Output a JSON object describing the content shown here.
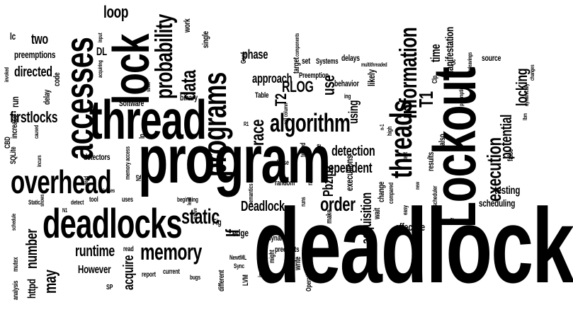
{
  "words": [
    {
      "text": "deadlock",
      "weight": 10
    },
    {
      "text": "program",
      "weight": 9
    },
    {
      "text": "Lockout",
      "weight": 8
    },
    {
      "text": "thread",
      "weight": 8
    },
    {
      "text": "lock",
      "weight": 8
    },
    {
      "text": "deadlocks",
      "weight": 7
    },
    {
      "text": "accesses",
      "weight": 7
    },
    {
      "text": "programs",
      "weight": 6
    },
    {
      "text": "overhead",
      "weight": 6
    },
    {
      "text": "threads",
      "weight": 6
    },
    {
      "text": "information",
      "weight": 5
    },
    {
      "text": "algorithm",
      "weight": 5
    },
    {
      "text": "probability",
      "weight": 5
    },
    {
      "text": "memory",
      "weight": 4
    },
    {
      "text": "execution",
      "weight": 4
    },
    {
      "text": "static",
      "weight": 4
    },
    {
      "text": "data",
      "weight": 4
    },
    {
      "text": "order",
      "weight": 4
    },
    {
      "text": "race",
      "weight": 4
    },
    {
      "text": "T1",
      "weight": 4
    },
    {
      "text": "T2",
      "weight": 3
    },
    {
      "text": "RLOG",
      "weight": 3
    },
    {
      "text": "potential",
      "weight": 3
    },
    {
      "text": "locking",
      "weight": 3
    },
    {
      "text": "number",
      "weight": 3
    },
    {
      "text": "firstlocks",
      "weight": 3
    },
    {
      "text": "directed",
      "weight": 3
    },
    {
      "text": "may",
      "weight": 3
    },
    {
      "text": "runtime",
      "weight": 3
    },
    {
      "text": "acquire",
      "weight": 3
    },
    {
      "text": "detection",
      "weight": 3
    },
    {
      "text": "dependent",
      "weight": 3
    },
    {
      "text": "Deadlock",
      "weight": 3
    },
    {
      "text": "acquisition",
      "weight": 3
    },
    {
      "text": "Pbzip2",
      "weight": 3
    },
    {
      "text": "If",
      "weight": 3
    },
    {
      "text": "loop",
      "weight": 3
    },
    {
      "text": "two",
      "weight": 2
    },
    {
      "text": "httpd",
      "weight": 2
    },
    {
      "text": "However",
      "weight": 2
    },
    {
      "text": "phase",
      "weight": 2
    },
    {
      "text": "approach",
      "weight": 2
    },
    {
      "text": "use",
      "weight": 2
    },
    {
      "text": "using",
      "weight": 2
    },
    {
      "text": "likely",
      "weight": 2
    },
    {
      "text": "time",
      "weight": 2
    },
    {
      "text": "manifestation",
      "weight": 2
    },
    {
      "text": "testing",
      "weight": 2
    },
    {
      "text": "scheduling",
      "weight": 2
    },
    {
      "text": "effective",
      "weight": 2
    },
    {
      "text": "executions",
      "weight": 2
    },
    {
      "text": "edge",
      "weight": 2
    },
    {
      "text": "DL",
      "weight": 2
    },
    {
      "text": "run",
      "weight": 2
    },
    {
      "text": "preemptions",
      "weight": 2
    },
    {
      "text": "lc",
      "weight": 1
    },
    {
      "text": "delay",
      "weight": 1
    },
    {
      "text": "code",
      "weight": 1
    },
    {
      "text": "increase",
      "weight": 1
    },
    {
      "text": "SQLite",
      "weight": 1
    },
    {
      "text": "CBD",
      "weight": 1
    },
    {
      "text": "detectors",
      "weight": 1
    },
    {
      "text": "Software",
      "weight": 1
    },
    {
      "text": "binary",
      "weight": 1
    },
    {
      "text": "work",
      "weight": 1
    },
    {
      "text": "single",
      "weight": 1
    },
    {
      "text": "set",
      "weight": 1
    },
    {
      "text": "Systems",
      "weight": 1
    },
    {
      "text": "delays",
      "weight": 1
    },
    {
      "text": "target",
      "weight": 1
    },
    {
      "text": "Preemption",
      "weight": 1
    },
    {
      "text": "behavior",
      "weight": 1
    },
    {
      "text": "source",
      "weight": 1
    },
    {
      "text": "random",
      "weight": 1
    },
    {
      "text": "results",
      "weight": 1
    },
    {
      "text": "also",
      "weight": 1
    },
    {
      "text": "change",
      "weight": 1
    },
    {
      "text": "wait",
      "weight": 1
    },
    {
      "text": "make",
      "weight": 1
    },
    {
      "text": "write",
      "weight": 1
    },
    {
      "text": "preempts",
      "weight": 1
    },
    {
      "text": "dynamic",
      "weight": 1
    },
    {
      "text": "instrumentation",
      "weight": 1
    },
    {
      "text": "different",
      "weight": 1
    },
    {
      "text": "LVM",
      "weight": 1
    },
    {
      "text": "Operating",
      "weight": 1
    },
    {
      "text": "might",
      "weight": 1
    },
    {
      "text": "Fig",
      "weight": 1
    },
    {
      "text": "Table",
      "weight": 1
    },
    {
      "text": "Conf",
      "weight": 1
    },
    {
      "text": "lp",
      "weight": 1
    },
    {
      "text": "N2",
      "weight": 1
    },
    {
      "text": "memory access",
      "weight": 1
    },
    {
      "text": "release",
      "weight": 1
    },
    {
      "text": "tested",
      "weight": 1
    },
    {
      "text": "races",
      "weight": 1
    },
    {
      "text": "one",
      "weight": 1
    },
    {
      "text": "false",
      "weight": 1
    },
    {
      "text": "Clp",
      "weight": 1
    },
    {
      "text": "report",
      "weight": 1
    },
    {
      "text": "current",
      "weight": 1
    },
    {
      "text": "bugs",
      "weight": 1
    },
    {
      "text": "SP",
      "weight": 1
    },
    {
      "text": "read",
      "weight": 1
    },
    {
      "text": "uses",
      "weight": 1
    },
    {
      "text": "tool",
      "weight": 1
    },
    {
      "text": "detect",
      "weight": 1
    },
    {
      "text": "Static",
      "weight": 1
    },
    {
      "text": "analysis",
      "weight": 1
    },
    {
      "text": "mutex",
      "weight": 1
    },
    {
      "text": "schedule",
      "weight": 1
    },
    {
      "text": "shows",
      "weight": 1
    },
    {
      "text": "N1",
      "weight": 1
    },
    {
      "text": "beginning",
      "weight": 1
    },
    {
      "text": "lead",
      "weight": 1
    },
    {
      "text": "Sync",
      "weight": 1
    },
    {
      "text": "NewtML",
      "weight": 1
    },
    {
      "text": "semantics",
      "weight": 1
    },
    {
      "text": "runs",
      "weight": 1
    },
    {
      "text": "compared",
      "weight": 1
    },
    {
      "text": "scheduler",
      "weight": 1
    },
    {
      "text": "new",
      "weight": 1
    },
    {
      "text": "de",
      "weight": 1
    },
    {
      "text": "easy",
      "weight": 1
    },
    {
      "text": "test",
      "weight": 1
    },
    {
      "text": "high",
      "weight": 1
    },
    {
      "text": "multithreaded",
      "weight": 1
    },
    {
      "text": "components",
      "weight": 1
    },
    {
      "text": "input",
      "weight": 1
    },
    {
      "text": "acquiring",
      "weight": 1
    },
    {
      "text": "interleavings",
      "weight": 1
    },
    {
      "text": "preempting",
      "weight": 1
    },
    {
      "text": "dynamically",
      "weight": 1
    },
    {
      "text": "changes",
      "weight": 1
    },
    {
      "text": "lbm",
      "weight": 1
    },
    {
      "text": "Gc",
      "weight": 1
    },
    {
      "text": "caused",
      "weight": 1
    },
    {
      "text": "incurs",
      "weight": 1
    },
    {
      "text": "dead",
      "weight": 1
    },
    {
      "text": "releases",
      "weight": 1
    },
    {
      "text": "since",
      "weight": 1
    },
    {
      "text": "ing",
      "weight": 1
    },
    {
      "text": "R1",
      "weight": 1
    },
    {
      "text": "cell column",
      "weight": 1
    },
    {
      "text": "n-1",
      "weight": 1
    },
    {
      "text": "invoked",
      "weight": 1
    },
    {
      "text": "native",
      "weight": 1
    }
  ]
}
